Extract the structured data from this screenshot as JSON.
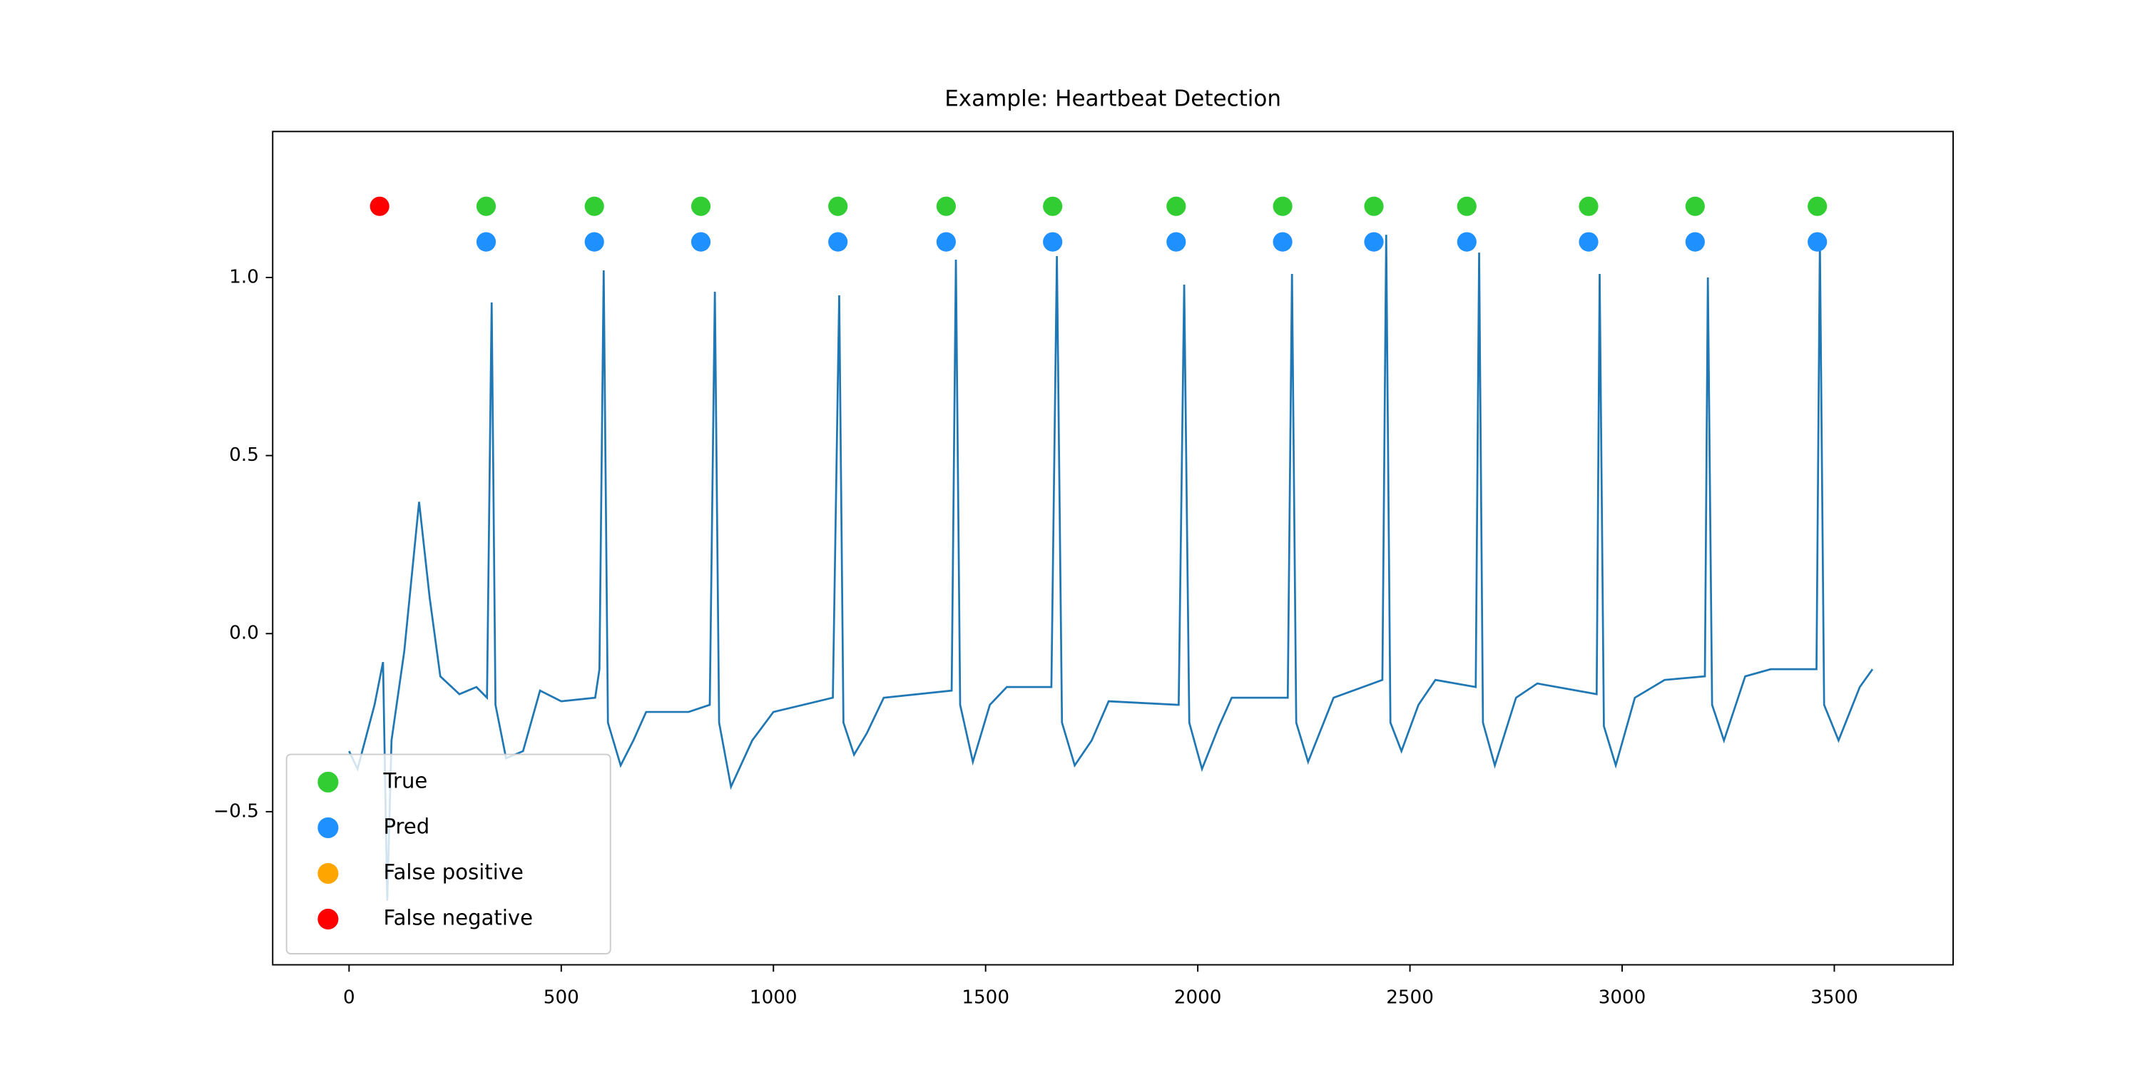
{
  "chart_data": {
    "type": "line-scatter",
    "title": "Example: Heartbeat Detection",
    "xlim": [
      -180,
      3780
    ],
    "ylim": [
      -0.93,
      1.41
    ],
    "xticks": [
      0,
      500,
      1000,
      1500,
      2000,
      2500,
      3000,
      3500
    ],
    "yticks": [
      {
        "value": -0.5,
        "label": "−0.5"
      },
      {
        "value": 0,
        "label": "0.0"
      },
      0.5,
      {
        "value": 1,
        "label": "1.0"
      }
    ],
    "legend": "lower left",
    "line": {
      "color": "#1f77b4",
      "x": [
        0,
        20,
        60,
        80,
        90,
        100,
        130,
        165,
        190,
        215,
        260,
        300,
        325,
        336,
        345,
        370,
        410,
        450,
        500,
        580,
        590,
        600,
        610,
        640,
        670,
        700,
        800,
        850,
        862,
        872,
        900,
        950,
        1000,
        1140,
        1155,
        1165,
        1190,
        1220,
        1260,
        1420,
        1430,
        1440,
        1470,
        1510,
        1550,
        1655,
        1668,
        1680,
        1710,
        1750,
        1790,
        1955,
        1968,
        1980,
        2010,
        2050,
        2080,
        2212,
        2222,
        2232,
        2260,
        2290,
        2320,
        2435,
        2444,
        2454,
        2480,
        2520,
        2560,
        2655,
        2663,
        2672,
        2700,
        2750,
        2800,
        2940,
        2947,
        2957,
        2985,
        3030,
        3100,
        3195,
        3202,
        3212,
        3240,
        3290,
        3350,
        3458,
        3466,
        3476,
        3510,
        3560,
        3590
      ],
      "values": [
        -0.33,
        -0.38,
        -0.2,
        -0.08,
        -0.75,
        -0.3,
        -0.05,
        0.37,
        0.1,
        -0.12,
        -0.17,
        -0.15,
        -0.18,
        0.93,
        -0.2,
        -0.35,
        -0.33,
        -0.16,
        -0.19,
        -0.18,
        -0.1,
        1.02,
        -0.25,
        -0.37,
        -0.3,
        -0.22,
        -0.22,
        -0.2,
        0.96,
        -0.25,
        -0.43,
        -0.3,
        -0.22,
        -0.18,
        0.95,
        -0.25,
        -0.34,
        -0.28,
        -0.18,
        -0.16,
        1.05,
        -0.2,
        -0.36,
        -0.2,
        -0.15,
        -0.15,
        1.06,
        -0.25,
        -0.37,
        -0.3,
        -0.19,
        -0.2,
        0.98,
        -0.25,
        -0.38,
        -0.26,
        -0.18,
        -0.18,
        1.01,
        -0.25,
        -0.36,
        -0.27,
        -0.18,
        -0.13,
        1.12,
        -0.25,
        -0.33,
        -0.2,
        -0.13,
        -0.15,
        1.07,
        -0.25,
        -0.37,
        -0.18,
        -0.14,
        -0.17,
        1.01,
        -0.26,
        -0.37,
        -0.18,
        -0.13,
        -0.12,
        1.0,
        -0.2,
        -0.3,
        -0.12,
        -0.1,
        -0.1,
        1.1,
        -0.2,
        -0.3,
        -0.15,
        -0.1
      ]
    },
    "series": [
      {
        "name": "True",
        "color": "#32cd32",
        "x": [
          323,
          578,
          829,
          1152,
          1407,
          1658,
          1949,
          2200,
          2415,
          2634,
          2921,
          3172,
          3460
        ],
        "values": [
          1.2,
          1.2,
          1.2,
          1.2,
          1.2,
          1.2,
          1.2,
          1.2,
          1.2,
          1.2,
          1.2,
          1.2,
          1.2
        ]
      },
      {
        "name": "Pred",
        "color": "#1e90ff",
        "x": [
          323,
          578,
          829,
          1152,
          1407,
          1658,
          1949,
          2200,
          2415,
          2634,
          2921,
          3172,
          3460
        ],
        "values": [
          1.1,
          1.1,
          1.1,
          1.1,
          1.1,
          1.1,
          1.1,
          1.1,
          1.1,
          1.1,
          1.1,
          1.1,
          1.1
        ]
      },
      {
        "name": "False positive",
        "color": "#ffa500",
        "x": [],
        "values": []
      },
      {
        "name": "False negative",
        "color": "#ff0000",
        "x": [
          72
        ],
        "values": [
          1.2
        ]
      }
    ]
  }
}
